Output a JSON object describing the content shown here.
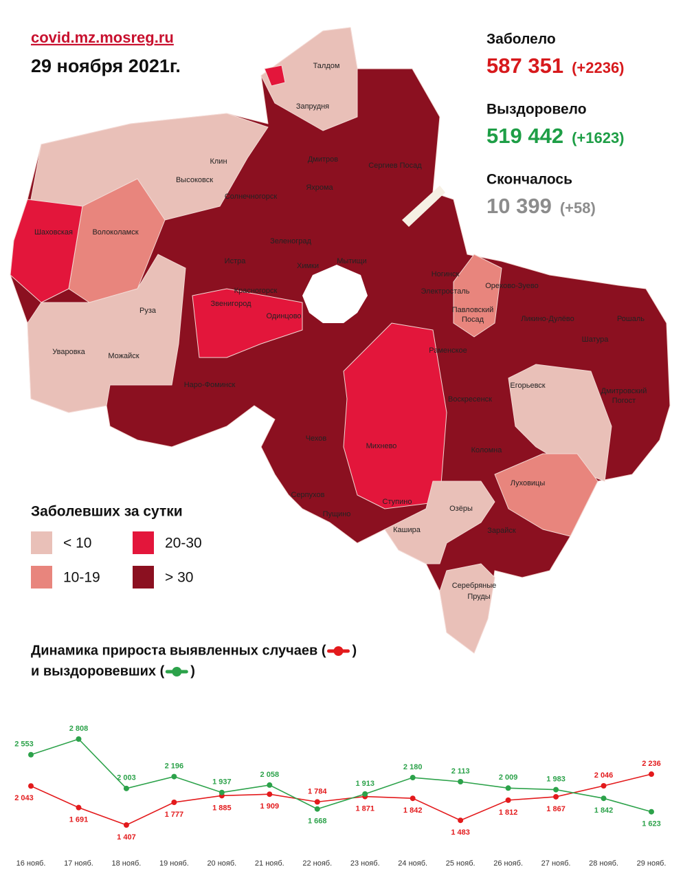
{
  "header": {
    "site": "covid.mz.mosreg.ru",
    "date": "29 ноября 2021г."
  },
  "stats": [
    {
      "label": "Заболело",
      "value": "587 351",
      "delta": "(+2236)",
      "color": "#d7191c"
    },
    {
      "label": "Выздоровело",
      "value": "519 442",
      "delta": "(+1623)",
      "color": "#1e9e46"
    },
    {
      "label": "Скончалось",
      "value": "10 399",
      "delta": "(+58)",
      "color": "#8c8c8c"
    }
  ],
  "map": {
    "legend_title": "Заболевших за сутки",
    "legend": [
      {
        "label": "< 10",
        "color": "#e9c0b8"
      },
      {
        "label": "10-19",
        "color": "#e8857d"
      },
      {
        "label": "20-30",
        "color": "#e3163b"
      },
      {
        "label": "> 30",
        "color": "#8b1020"
      }
    ],
    "labels": [
      "Талдом",
      "Запрудня",
      "Клин",
      "Высоковск",
      "Дмитров",
      "Сергиев Посад",
      "Яхрома",
      "Солнечногорск",
      "Волоколамск",
      "Шаховская",
      "Зеленоград",
      "Истра",
      "Химки",
      "Мытищи",
      "Красногорск",
      "Ногинск",
      "Электросталь",
      "Орехово-Зуево",
      "Павловский",
      "Посад",
      "Ликино-Дулёво",
      "Рошаль",
      "Руза",
      "Звенигород",
      "Одинцово",
      "Раменское",
      "Шатура",
      "Уваровка",
      "Можайск",
      "Наро-Фоминск",
      "Егорьевск",
      "Дмитровский",
      "Погост",
      "Воскресенск",
      "Чехов",
      "Михнево",
      "Коломна",
      "Луховицы",
      "Серпухов",
      "Пущино",
      "Ступино",
      "Озёры",
      "Кашира",
      "Зарайск",
      "Серебряные",
      "Пруды"
    ]
  },
  "chart_data": {
    "type": "line",
    "title": "Динамика прироста выявленных случаев (",
    "subtitle": "и выздоровевших (",
    "bracket_close": ")",
    "categories": [
      "16 нояб.",
      "17 нояб.",
      "18 нояб.",
      "19 нояб.",
      "20 нояб.",
      "21 нояб.",
      "22 нояб.",
      "23 нояб.",
      "24 нояб.",
      "25 нояб.",
      "26 нояб.",
      "27 нояб.",
      "28 нояб.",
      "29 нояб."
    ],
    "series": [
      {
        "color": "#e31a1c",
        "values": [
          2043,
          1691,
          1407,
          1777,
          1885,
          1909,
          1784,
          1871,
          1842,
          1483,
          1812,
          1867,
          2046,
          2236
        ],
        "value_labels": [
          "2 043",
          "1 691",
          "1 407",
          "1 777",
          "1 885",
          "1 909",
          "1 784",
          "1 871",
          "1 842",
          "1 483",
          "1 812",
          "1 867",
          "2 046",
          "2 236"
        ]
      },
      {
        "color": "#2ca24a",
        "values": [
          2553,
          2808,
          2003,
          2196,
          1937,
          2058,
          1668,
          1913,
          2180,
          2113,
          2009,
          1983,
          1842,
          1623
        ],
        "value_labels": [
          "2 553",
          "2 808",
          "2 003",
          "2 196",
          "1 937",
          "2 058",
          "1 668",
          "1 913",
          "2 180",
          "2 113",
          "2 009",
          "1 983",
          "1 842",
          "1 623"
        ]
      }
    ]
  }
}
